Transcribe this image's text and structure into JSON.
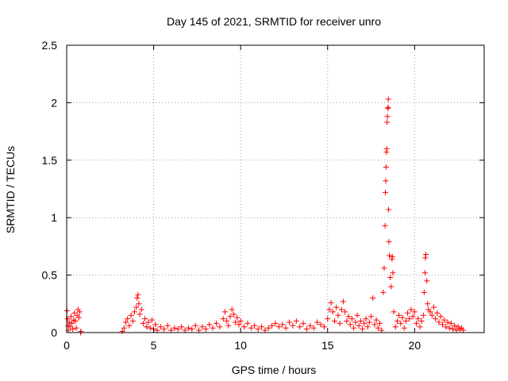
{
  "chart_data": {
    "type": "scatter",
    "title": "Day 145 of 2021, SRMTID for receiver unro",
    "xlabel": "GPS time / hours",
    "ylabel": "SRMTID / TECUs",
    "xlim": [
      0,
      24
    ],
    "ylim": [
      0,
      2.5
    ],
    "grid": true,
    "marker": "+",
    "series_color": "#ff0000",
    "x_ticks": [
      {
        "value": 0,
        "label": "0"
      },
      {
        "value": 5,
        "label": "5"
      },
      {
        "value": 10,
        "label": "10"
      },
      {
        "value": 15,
        "label": "15"
      },
      {
        "value": 20,
        "label": "20"
      }
    ],
    "y_ticks": [
      {
        "value": 0,
        "label": "0"
      },
      {
        "value": 0.5,
        "label": "0.5"
      },
      {
        "value": 1,
        "label": "1"
      },
      {
        "value": 1.5,
        "label": "1.5"
      },
      {
        "value": 2,
        "label": "2"
      },
      {
        "value": 2.5,
        "label": "2.5"
      }
    ],
    "series": [
      {
        "name": "SRMTID",
        "points": [
          [
            0.02,
            0.19
          ],
          [
            0.05,
            0.12
          ],
          [
            0.08,
            0.06
          ],
          [
            0.1,
            0.02
          ],
          [
            0.15,
            0.09
          ],
          [
            0.2,
            0.05
          ],
          [
            0.25,
            0.14
          ],
          [
            0.3,
            0.08
          ],
          [
            0.35,
            0.03
          ],
          [
            0.4,
            0.11
          ],
          [
            0.45,
            0.17
          ],
          [
            0.5,
            0.1
          ],
          [
            0.55,
            0.04
          ],
          [
            0.6,
            0.15
          ],
          [
            0.65,
            0.2
          ],
          [
            0.7,
            0.13
          ],
          [
            0.75,
            0.18
          ],
          [
            0.8,
            0.0
          ],
          [
            0.82,
            0.01
          ],
          [
            3.2,
            0.01
          ],
          [
            3.3,
            0.04
          ],
          [
            3.4,
            0.09
          ],
          [
            3.5,
            0.12
          ],
          [
            3.6,
            0.06
          ],
          [
            3.7,
            0.15
          ],
          [
            3.8,
            0.1
          ],
          [
            3.9,
            0.18
          ],
          [
            4.0,
            0.22
          ],
          [
            4.05,
            0.3
          ],
          [
            4.1,
            0.33
          ],
          [
            4.15,
            0.25
          ],
          [
            4.2,
            0.16
          ],
          [
            4.3,
            0.2
          ],
          [
            4.4,
            0.08
          ],
          [
            4.5,
            0.12
          ],
          [
            4.6,
            0.05
          ],
          [
            4.7,
            0.09
          ],
          [
            4.8,
            0.04
          ],
          [
            4.9,
            0.11
          ],
          [
            5.0,
            0.03
          ],
          [
            5.1,
            0.07
          ],
          [
            5.2,
            0.02
          ],
          [
            5.4,
            0.05
          ],
          [
            5.6,
            0.03
          ],
          [
            5.8,
            0.06
          ],
          [
            6.0,
            0.02
          ],
          [
            6.2,
            0.04
          ],
          [
            6.4,
            0.03
          ],
          [
            6.6,
            0.05
          ],
          [
            6.8,
            0.02
          ],
          [
            7.0,
            0.04
          ],
          [
            7.2,
            0.03
          ],
          [
            7.4,
            0.06
          ],
          [
            7.6,
            0.02
          ],
          [
            7.8,
            0.05
          ],
          [
            8.0,
            0.03
          ],
          [
            8.2,
            0.07
          ],
          [
            8.4,
            0.04
          ],
          [
            8.6,
            0.08
          ],
          [
            8.8,
            0.05
          ],
          [
            9.0,
            0.12
          ],
          [
            9.1,
            0.18
          ],
          [
            9.2,
            0.1
          ],
          [
            9.3,
            0.06
          ],
          [
            9.4,
            0.14
          ],
          [
            9.5,
            0.2
          ],
          [
            9.6,
            0.16
          ],
          [
            9.7,
            0.09
          ],
          [
            9.8,
            0.13
          ],
          [
            9.9,
            0.07
          ],
          [
            10.0,
            0.1
          ],
          [
            10.2,
            0.05
          ],
          [
            10.4,
            0.08
          ],
          [
            10.6,
            0.04
          ],
          [
            10.8,
            0.06
          ],
          [
            11.0,
            0.03
          ],
          [
            11.2,
            0.05
          ],
          [
            11.4,
            0.02
          ],
          [
            11.6,
            0.04
          ],
          [
            11.8,
            0.06
          ],
          [
            12.0,
            0.08
          ],
          [
            12.2,
            0.05
          ],
          [
            12.4,
            0.07
          ],
          [
            12.6,
            0.04
          ],
          [
            12.8,
            0.09
          ],
          [
            13.0,
            0.06
          ],
          [
            13.2,
            0.1
          ],
          [
            13.4,
            0.05
          ],
          [
            13.6,
            0.08
          ],
          [
            13.8,
            0.03
          ],
          [
            14.0,
            0.06
          ],
          [
            14.2,
            0.04
          ],
          [
            14.4,
            0.09
          ],
          [
            14.6,
            0.07
          ],
          [
            14.8,
            0.05
          ],
          [
            15.0,
            0.12
          ],
          [
            15.1,
            0.2
          ],
          [
            15.2,
            0.26
          ],
          [
            15.3,
            0.18
          ],
          [
            15.4,
            0.1
          ],
          [
            15.5,
            0.22
          ],
          [
            15.6,
            0.15
          ],
          [
            15.7,
            0.08
          ],
          [
            15.8,
            0.2
          ],
          [
            15.9,
            0.27
          ],
          [
            16.0,
            0.18
          ],
          [
            16.1,
            0.1
          ],
          [
            16.2,
            0.14
          ],
          [
            16.3,
            0.07
          ],
          [
            16.4,
            0.12
          ],
          [
            16.5,
            0.04
          ],
          [
            16.6,
            0.09
          ],
          [
            16.7,
            0.15
          ],
          [
            16.8,
            0.06
          ],
          [
            16.9,
            0.1
          ],
          [
            17.0,
            0.03
          ],
          [
            17.1,
            0.08
          ],
          [
            17.2,
            0.12
          ],
          [
            17.3,
            0.05
          ],
          [
            17.4,
            0.09
          ],
          [
            17.5,
            0.14
          ],
          [
            17.6,
            0.3
          ],
          [
            17.7,
            0.07
          ],
          [
            17.8,
            0.11
          ],
          [
            17.9,
            0.04
          ],
          [
            18.0,
            0.08
          ],
          [
            18.1,
            0.02
          ],
          [
            18.2,
            0.35
          ],
          [
            18.25,
            0.56
          ],
          [
            18.3,
            0.93
          ],
          [
            18.32,
            1.22
          ],
          [
            18.34,
            1.32
          ],
          [
            18.36,
            1.44
          ],
          [
            18.38,
            1.57
          ],
          [
            18.4,
            1.6
          ],
          [
            18.42,
            1.83
          ],
          [
            18.44,
            1.88
          ],
          [
            18.46,
            1.95
          ],
          [
            18.48,
            1.96
          ],
          [
            18.49,
            2.03
          ],
          [
            18.5,
            1.07
          ],
          [
            18.52,
            0.79
          ],
          [
            18.55,
            0.67
          ],
          [
            18.6,
            0.48
          ],
          [
            18.65,
            0.4
          ],
          [
            18.7,
            0.64
          ],
          [
            18.72,
            0.66
          ],
          [
            18.75,
            0.52
          ],
          [
            18.8,
            0.18
          ],
          [
            18.9,
            0.05
          ],
          [
            19.0,
            0.1
          ],
          [
            19.1,
            0.15
          ],
          [
            19.2,
            0.08
          ],
          [
            19.3,
            0.13
          ],
          [
            19.4,
            0.04
          ],
          [
            19.5,
            0.1
          ],
          [
            19.6,
            0.17
          ],
          [
            19.7,
            0.12
          ],
          [
            19.8,
            0.2
          ],
          [
            19.9,
            0.14
          ],
          [
            20.0,
            0.18
          ],
          [
            20.1,
            0.08
          ],
          [
            20.2,
            0.12
          ],
          [
            20.3,
            0.05
          ],
          [
            20.4,
            0.1
          ],
          [
            20.5,
            0.15
          ],
          [
            20.55,
            0.35
          ],
          [
            20.6,
            0.52
          ],
          [
            20.62,
            0.65
          ],
          [
            20.65,
            0.68
          ],
          [
            20.7,
            0.45
          ],
          [
            20.75,
            0.25
          ],
          [
            20.8,
            0.2
          ],
          [
            20.9,
            0.18
          ],
          [
            21.0,
            0.15
          ],
          [
            21.1,
            0.22
          ],
          [
            21.2,
            0.12
          ],
          [
            21.3,
            0.17
          ],
          [
            21.4,
            0.09
          ],
          [
            21.5,
            0.14
          ],
          [
            21.6,
            0.07
          ],
          [
            21.7,
            0.11
          ],
          [
            21.8,
            0.05
          ],
          [
            21.9,
            0.09
          ],
          [
            22.0,
            0.04
          ],
          [
            22.1,
            0.08
          ],
          [
            22.2,
            0.03
          ],
          [
            22.3,
            0.06
          ],
          [
            22.4,
            0.02
          ],
          [
            22.5,
            0.05
          ],
          [
            22.6,
            0.03
          ],
          [
            22.7,
            0.04
          ],
          [
            22.8,
            0.02
          ]
        ]
      }
    ]
  }
}
